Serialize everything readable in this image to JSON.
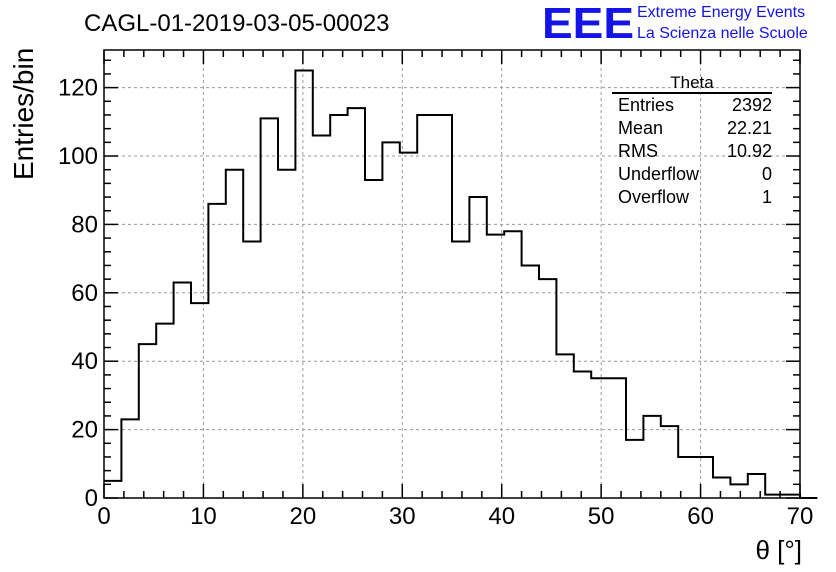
{
  "header": {
    "title": "CAGL-01-2019-03-05-00023",
    "logo_text": "EEE",
    "logo_line1": "Extreme Energy Events",
    "logo_line2": "La Scienza nelle Scuole",
    "logo_color": "#1414e6"
  },
  "stats": {
    "title": "Theta",
    "rows": [
      {
        "label": "Entries",
        "value": "2392"
      },
      {
        "label": "Mean",
        "value": "22.21"
      },
      {
        "label": "RMS",
        "value": "10.92"
      },
      {
        "label": "Underflow",
        "value": "0"
      },
      {
        "label": "Overflow",
        "value": "1"
      }
    ]
  },
  "chart_data": {
    "type": "bar",
    "style": "step-histogram",
    "xlabel": "θ [°]",
    "ylabel": "Entries/bin",
    "xlim": [
      0,
      70
    ],
    "ylim": [
      0,
      131
    ],
    "bin_width": 1.75,
    "x_ticks": [
      0,
      10,
      20,
      30,
      40,
      50,
      60,
      70
    ],
    "y_ticks": [
      0,
      20,
      40,
      60,
      80,
      100,
      120
    ],
    "grid": true,
    "values": [
      5,
      23,
      45,
      51,
      63,
      57,
      86,
      96,
      75,
      111,
      96,
      125,
      106,
      112,
      114,
      93,
      104,
      101,
      112,
      112,
      75,
      88,
      77,
      78,
      68,
      64,
      42,
      37,
      35,
      35,
      17,
      24,
      21,
      12,
      12,
      6,
      4,
      7,
      1,
      1,
      0
    ]
  }
}
